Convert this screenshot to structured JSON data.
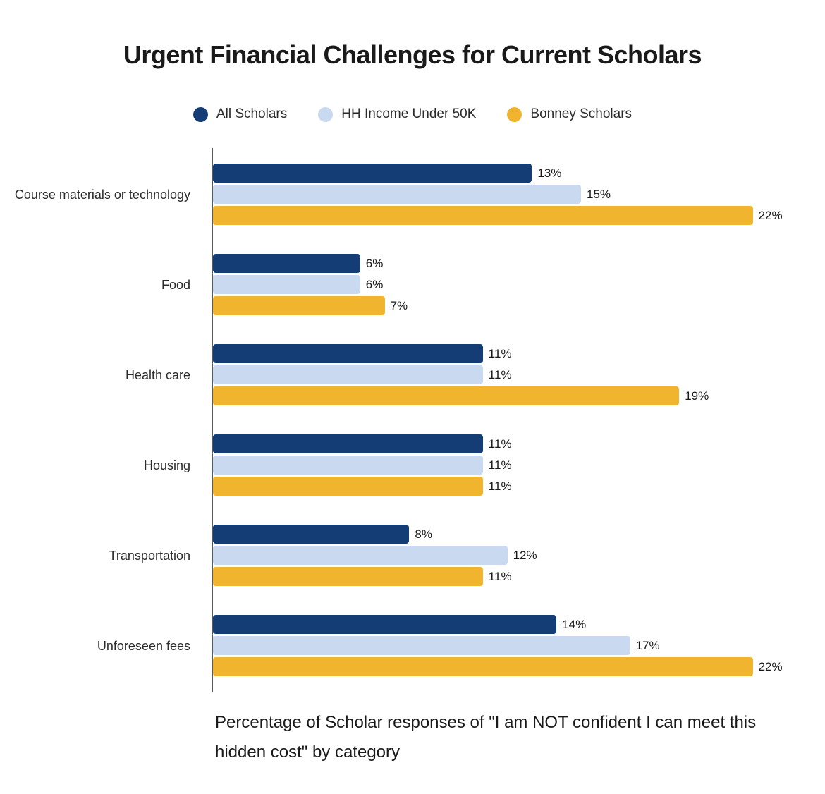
{
  "title": "Urgent Financial Challenges for Current Scholars",
  "legend": [
    {
      "label": "All Scholars",
      "color": "#143D76"
    },
    {
      "label": "HH Income Under 50K",
      "color": "#C8D9F0"
    },
    {
      "label": "Bonney Scholars",
      "color": "#F0B42E"
    }
  ],
  "colors": {
    "navy": "#143D76",
    "light_blue": "#C8D9F0",
    "gold": "#F0B42E",
    "axis": "#58595B"
  },
  "caption": {
    "line1": "Percentage of Scholar responses of \"I am NOT confident I can meet this",
    "line2": "hidden cost\" by category"
  },
  "chart_data": {
    "type": "bar",
    "orientation": "horizontal",
    "title": "Urgent Financial Challenges for Current Scholars",
    "categories": [
      "Course materials or technology",
      "Food",
      "Health care",
      "Housing",
      "Transportation",
      "Unforeseen fees"
    ],
    "series": [
      {
        "name": "All Scholars",
        "color": "#143D76",
        "values": [
          13,
          6,
          11,
          11,
          8,
          14
        ]
      },
      {
        "name": "HH Income Under 50K",
        "color": "#C8D9F0",
        "values": [
          15,
          6,
          11,
          11,
          12,
          17
        ]
      },
      {
        "name": "Bonney Scholars",
        "color": "#F0B42E",
        "values": [
          22,
          7,
          19,
          11,
          11,
          22
        ]
      }
    ],
    "value_suffix": "%",
    "data_labels": true,
    "xlim": [
      0,
      22
    ],
    "grid": false,
    "legend_position": "top",
    "xlabel": "",
    "ylabel": ""
  }
}
